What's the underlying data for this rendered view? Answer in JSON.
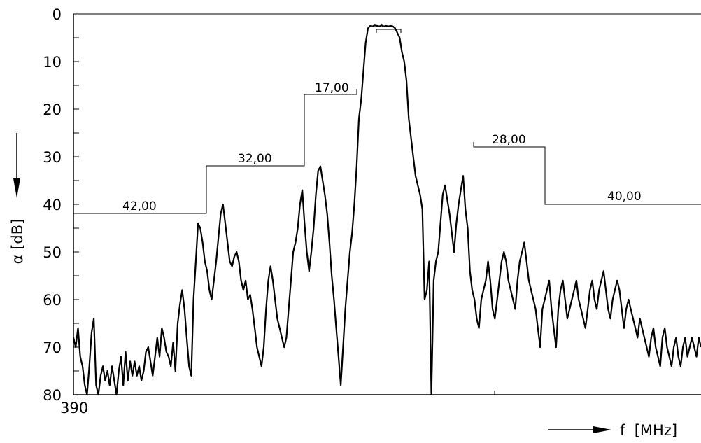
{
  "chart_data": {
    "type": "line",
    "title": "",
    "xlabel": "f  [MHz]",
    "ylabel": "α  [dB]",
    "y_inverted": true,
    "ylim": [
      0,
      80
    ],
    "y_ticks": [
      "0",
      "10",
      "20",
      "30",
      "40",
      "50",
      "60",
      "70",
      "80"
    ],
    "x_ticks": [
      "390"
    ],
    "grid": false,
    "mask": [
      {
        "label": "42,00",
        "value": 42
      },
      {
        "label": "32,00",
        "value": 32
      },
      {
        "label": "17,00",
        "value": 17
      },
      {
        "label": "28,00",
        "value": 28
      },
      {
        "label": "40,00",
        "value": 40
      }
    ],
    "series": [
      {
        "name": "",
        "values": [
          68,
          70,
          66,
          72,
          74,
          78,
          80,
          74,
          67,
          64,
          78,
          80,
          76,
          74,
          77,
          75,
          78,
          74,
          77,
          80,
          75,
          72,
          78,
          71,
          77,
          73,
          76,
          73,
          76,
          74,
          77,
          75,
          71,
          70,
          73,
          76,
          72,
          68,
          72,
          66,
          68,
          71,
          72,
          74,
          69,
          75,
          65,
          61,
          58,
          62,
          68,
          74,
          76,
          60,
          52,
          44,
          45,
          48,
          52,
          54,
          58,
          60,
          56,
          52,
          47,
          42,
          40,
          44,
          48,
          52,
          53,
          51,
          50,
          52,
          56,
          58,
          56,
          60,
          59,
          62,
          66,
          70,
          72,
          74,
          70,
          62,
          56,
          53,
          56,
          60,
          64,
          66,
          68,
          70,
          68,
          62,
          56,
          50,
          48,
          45,
          40,
          37,
          44,
          50,
          54,
          50,
          45,
          38,
          33,
          32,
          35,
          38,
          42,
          48,
          55,
          60,
          66,
          72,
          78,
          70,
          62,
          56,
          50,
          46,
          40,
          32,
          22,
          18,
          12,
          6,
          3,
          2.5,
          2.6,
          2.4,
          2.5,
          2.6,
          2.4,
          2.6,
          2.5,
          2.6,
          2.5,
          2.6,
          3,
          4,
          5,
          8,
          10,
          14,
          22,
          26,
          30,
          34,
          36,
          38,
          41,
          60,
          58,
          52,
          80,
          56,
          52,
          50,
          44,
          38,
          36,
          39,
          42,
          46,
          50,
          44,
          40,
          37,
          34,
          41,
          45,
          54,
          58,
          60,
          64,
          66,
          60,
          58,
          56,
          52,
          56,
          62,
          64,
          60,
          56,
          52,
          50,
          52,
          56,
          58,
          60,
          62,
          56,
          52,
          50,
          48,
          52,
          56,
          58,
          60,
          62,
          66,
          70,
          62,
          60,
          58,
          56,
          62,
          66,
          70,
          62,
          58,
          56,
          60,
          64,
          62,
          60,
          58,
          56,
          60,
          62,
          64,
          66,
          62,
          58,
          56,
          60,
          62,
          58,
          56,
          54,
          58,
          62,
          64,
          60,
          58,
          56,
          58,
          62,
          66,
          62,
          60,
          62,
          64,
          66,
          68,
          64,
          66,
          68,
          70,
          72,
          68,
          66,
          70,
          72,
          74,
          68,
          66,
          70,
          72,
          74,
          70,
          68,
          72,
          74,
          70,
          68,
          72,
          70,
          68,
          70,
          72,
          68,
          70
        ]
      }
    ]
  }
}
